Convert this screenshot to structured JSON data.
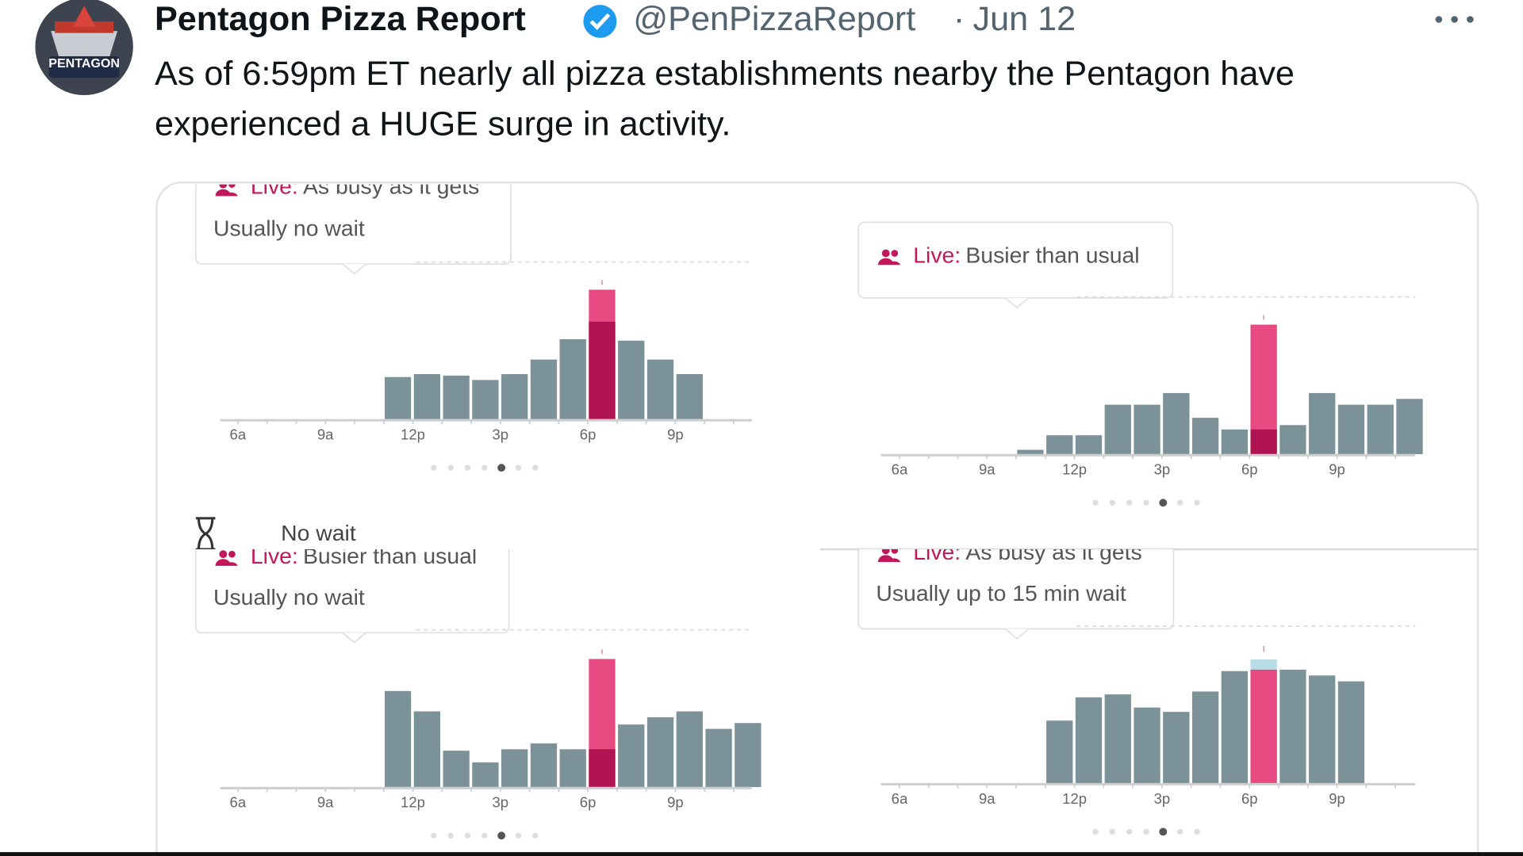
{
  "tweet": {
    "author": "Pentagon Pizza Report",
    "handle": "@PenPizzaReport",
    "separator": "·",
    "date": "Jun 12",
    "avatar_label": "PENTAGON",
    "text_lines": [
      "As of 6:59pm ET nearly all pizza establishments nearby the Pentagon have",
      "experienced a HUGE surge in activity."
    ],
    "overlay_text": "No wait"
  },
  "chart_data": [
    {
      "type": "bar",
      "live_label": "Live:",
      "status": "As busy as it gets",
      "subtitle": "Usually no wait",
      "categories": [
        "6a",
        null,
        null,
        "9a",
        null,
        null,
        "12p",
        null,
        null,
        "3p",
        null,
        null,
        "6p",
        null,
        null,
        "9p",
        null,
        null
      ],
      "ylim": [
        0,
        100
      ],
      "highlight_color": "#b01452",
      "usual_above_color": "#b9dde6",
      "series": [
        {
          "color": "#7c9299",
          "values": [
            0,
            0,
            0,
            0,
            0,
            29,
            31,
            30,
            27,
            31,
            41,
            55,
            67,
            54,
            41,
            31,
            0,
            0
          ]
        },
        {
          "color": "#e84a82",
          "values": [
            null,
            null,
            null,
            null,
            null,
            null,
            null,
            null,
            null,
            null,
            null,
            null,
            89,
            null,
            null,
            null,
            null,
            null
          ]
        }
      ]
    },
    {
      "type": "bar",
      "live_label": "Live:",
      "status": "Busier than usual",
      "categories": [
        "6a",
        null,
        null,
        "9a",
        null,
        null,
        "12p",
        null,
        null,
        "3p",
        null,
        null,
        "6p",
        null,
        null,
        "9p",
        null,
        null
      ],
      "ylim": [
        0,
        100
      ],
      "highlight_color": "#b01452",
      "usual_above_color": "#b9dde6",
      "series": [
        {
          "color": "#7c9299",
          "values": [
            0,
            0,
            0,
            0,
            3,
            13,
            13,
            34,
            34,
            42,
            25,
            17,
            17,
            20,
            42,
            34,
            34,
            38
          ]
        },
        {
          "color": "#e84a82",
          "values": [
            null,
            null,
            null,
            null,
            null,
            null,
            null,
            null,
            null,
            null,
            null,
            null,
            89,
            null,
            null,
            null,
            null,
            null
          ]
        }
      ]
    },
    {
      "type": "bar",
      "live_label": "Live:",
      "status": "Busier than usual",
      "subtitle": "Usually no wait",
      "categories": [
        "6a",
        null,
        null,
        "9a",
        null,
        null,
        "12p",
        null,
        null,
        "3p",
        null,
        null,
        "6p",
        null,
        null,
        "9p",
        null,
        null
      ],
      "ylim": [
        0,
        100
      ],
      "highlight_color": "#b01452",
      "usual_above_color": "#b9dde6",
      "series": [
        {
          "color": "#7c9299",
          "values": [
            0,
            0,
            0,
            0,
            0,
            66,
            52,
            25,
            17,
            26,
            30,
            26,
            26,
            43,
            48,
            52,
            40,
            44
          ]
        },
        {
          "color": "#e84a82",
          "values": [
            null,
            null,
            null,
            null,
            null,
            null,
            null,
            null,
            null,
            null,
            null,
            null,
            88,
            null,
            null,
            null,
            null,
            null
          ]
        }
      ]
    },
    {
      "type": "bar",
      "live_label": "Live:",
      "status": "As busy as it gets",
      "subtitle": "Usually up to 15 min wait",
      "categories": [
        "6a",
        null,
        null,
        "9a",
        null,
        null,
        "12p",
        null,
        null,
        "3p",
        null,
        null,
        "6p",
        null,
        null,
        "9p",
        null,
        null
      ],
      "ylim": [
        0,
        100
      ],
      "highlight_color": "#b01452",
      "usual_above_color": "#b9dde6",
      "series": [
        {
          "color": "#7c9299",
          "values": [
            0,
            0,
            0,
            0,
            0,
            43,
            59,
            61,
            52,
            49,
            63,
            77,
            85,
            78,
            74,
            70,
            0,
            0
          ]
        },
        {
          "color": "#e84a82",
          "values": [
            null,
            null,
            null,
            null,
            null,
            null,
            null,
            null,
            null,
            null,
            null,
            null,
            78,
            null,
            null,
            null,
            null,
            null
          ]
        }
      ]
    }
  ]
}
